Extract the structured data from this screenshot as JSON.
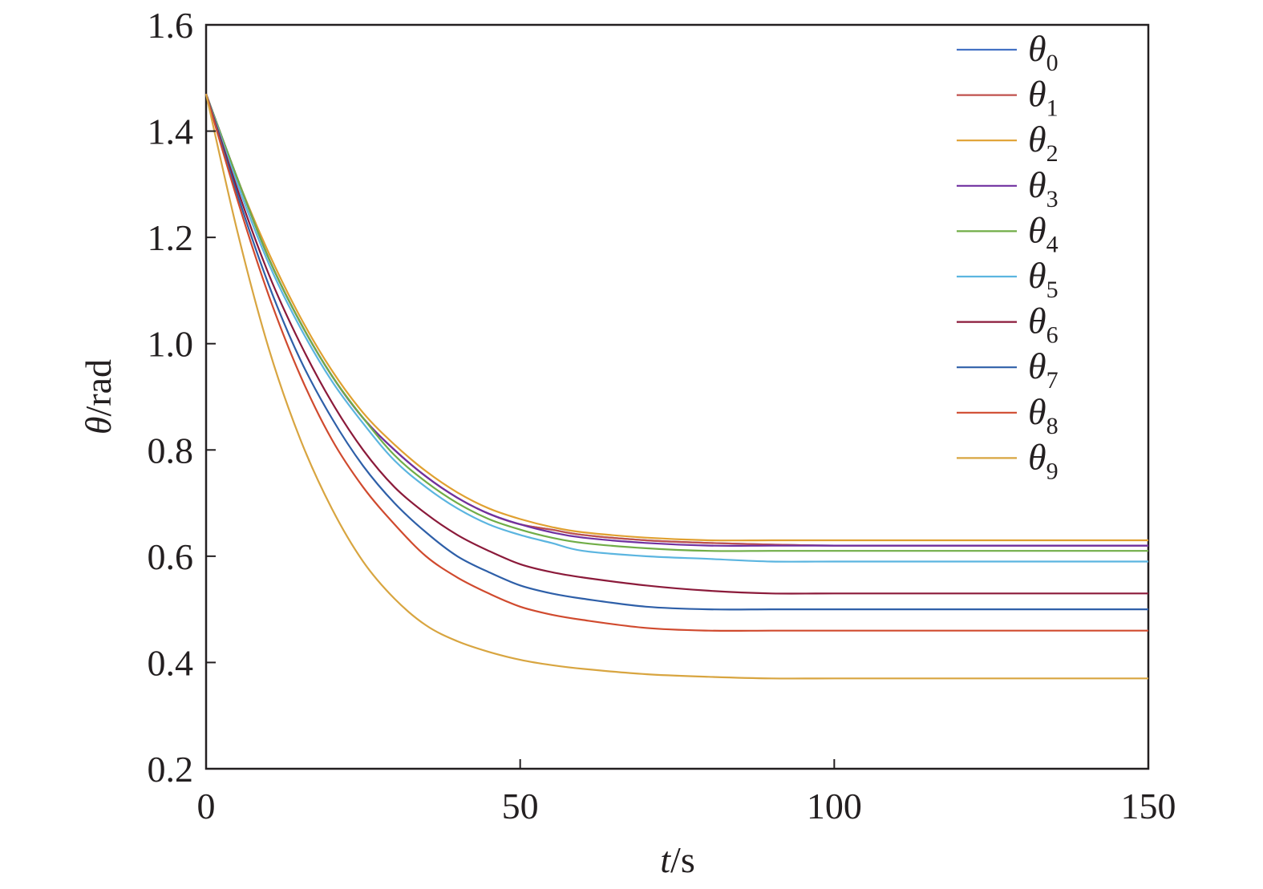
{
  "chart_data": {
    "type": "line",
    "xlabel": {
      "var": "t",
      "unit": "/s"
    },
    "ylabel": {
      "var": "θ",
      "unit": "/rad"
    },
    "xlim": [
      0,
      150
    ],
    "ylim": [
      0.2,
      1.6
    ],
    "xticks": [
      0,
      50,
      100,
      150
    ],
    "xtick_labels": [
      "0",
      "50",
      "100",
      "150"
    ],
    "yticks": [
      0.2,
      0.4,
      0.6,
      0.8,
      1.0,
      1.2,
      1.4,
      1.6
    ],
    "ytick_labels": [
      "0.2",
      "0.4",
      "0.6",
      "0.8",
      "1.0",
      "1.2",
      "1.4",
      "1.6"
    ],
    "grid": false,
    "legend_position": "top-right",
    "x": [
      0,
      5,
      10,
      15,
      20,
      25,
      30,
      35,
      40,
      45,
      50,
      55,
      60,
      70,
      80,
      90,
      100,
      120,
      150
    ],
    "series": [
      {
        "name": "θ",
        "sub": "0",
        "color": "#4472c4",
        "values": [
          1.47,
          1.31,
          1.16,
          1.04,
          0.94,
          0.86,
          0.8,
          0.75,
          0.71,
          0.68,
          0.66,
          0.65,
          0.64,
          0.63,
          0.625,
          0.622,
          0.62,
          0.62,
          0.62
        ]
      },
      {
        "name": "θ",
        "sub": "1",
        "color": "#c0504d",
        "values": [
          1.47,
          1.31,
          1.16,
          1.04,
          0.94,
          0.86,
          0.8,
          0.75,
          0.71,
          0.68,
          0.66,
          0.65,
          0.64,
          0.63,
          0.625,
          0.622,
          0.62,
          0.62,
          0.62
        ]
      },
      {
        "name": "θ",
        "sub": "2",
        "color": "#e0a030",
        "values": [
          1.47,
          1.31,
          1.17,
          1.05,
          0.95,
          0.87,
          0.81,
          0.76,
          0.72,
          0.69,
          0.67,
          0.655,
          0.645,
          0.635,
          0.63,
          0.63,
          0.63,
          0.63,
          0.63
        ]
      },
      {
        "name": "θ",
        "sub": "3",
        "color": "#7030a0",
        "values": [
          1.47,
          1.31,
          1.16,
          1.04,
          0.94,
          0.86,
          0.8,
          0.75,
          0.71,
          0.68,
          0.66,
          0.645,
          0.635,
          0.625,
          0.62,
          0.62,
          0.62,
          0.62,
          0.62
        ]
      },
      {
        "name": "θ",
        "sub": "4",
        "color": "#70ad47",
        "values": [
          1.47,
          1.31,
          1.16,
          1.04,
          0.94,
          0.86,
          0.79,
          0.74,
          0.7,
          0.67,
          0.65,
          0.635,
          0.625,
          0.615,
          0.61,
          0.61,
          0.61,
          0.61,
          0.61
        ]
      },
      {
        "name": "θ",
        "sub": "5",
        "color": "#5bb5e0",
        "values": [
          1.47,
          1.3,
          1.15,
          1.03,
          0.93,
          0.85,
          0.78,
          0.73,
          0.69,
          0.66,
          0.64,
          0.625,
          0.61,
          0.6,
          0.595,
          0.59,
          0.59,
          0.59,
          0.59
        ]
      },
      {
        "name": "θ",
        "sub": "6",
        "color": "#8b1a3a",
        "values": [
          1.47,
          1.29,
          1.13,
          1.0,
          0.89,
          0.8,
          0.73,
          0.68,
          0.64,
          0.61,
          0.585,
          0.57,
          0.56,
          0.545,
          0.535,
          0.53,
          0.53,
          0.53,
          0.53
        ]
      },
      {
        "name": "θ",
        "sub": "7",
        "color": "#2e5fa8",
        "values": [
          1.47,
          1.28,
          1.11,
          0.97,
          0.86,
          0.77,
          0.7,
          0.645,
          0.6,
          0.57,
          0.545,
          0.53,
          0.52,
          0.505,
          0.5,
          0.5,
          0.5,
          0.5,
          0.5
        ]
      },
      {
        "name": "θ",
        "sub": "8",
        "color": "#d04a2e",
        "values": [
          1.47,
          1.27,
          1.09,
          0.94,
          0.82,
          0.73,
          0.66,
          0.6,
          0.56,
          0.53,
          0.505,
          0.49,
          0.48,
          0.465,
          0.46,
          0.46,
          0.46,
          0.46,
          0.46
        ]
      },
      {
        "name": "θ",
        "sub": "9",
        "color": "#d8a540",
        "values": [
          1.47,
          1.21,
          0.99,
          0.82,
          0.69,
          0.59,
          0.52,
          0.47,
          0.44,
          0.42,
          0.405,
          0.395,
          0.388,
          0.378,
          0.373,
          0.37,
          0.37,
          0.37,
          0.37
        ]
      }
    ]
  }
}
